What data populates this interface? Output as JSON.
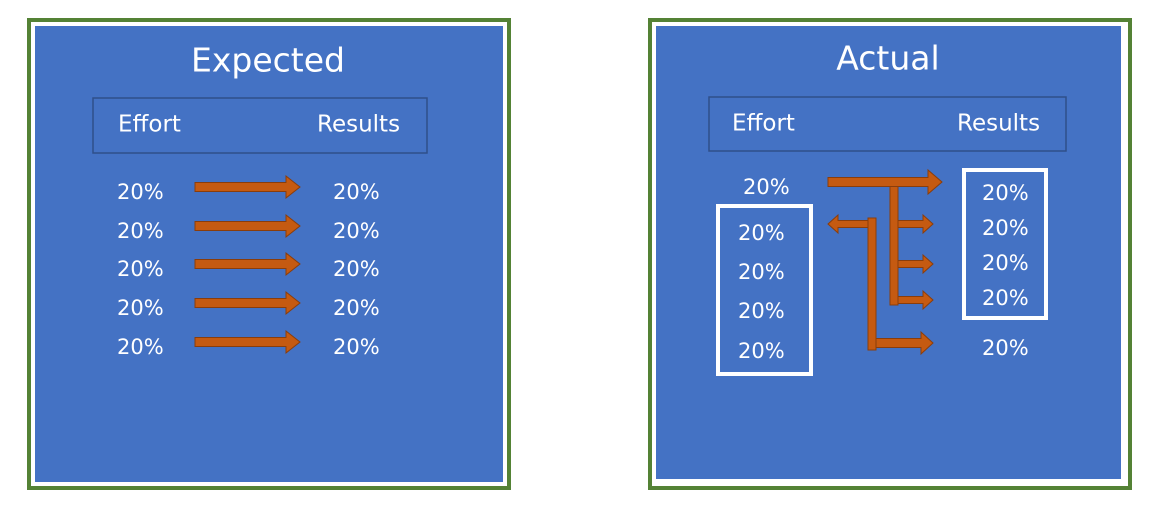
{
  "panels": [
    {
      "title": "Expected",
      "header": {
        "left": "Effort",
        "right": "Results"
      },
      "effort": [
        "20%",
        "20%",
        "20%",
        "20%",
        "20%"
      ],
      "results": [
        "20%",
        "20%",
        "20%",
        "20%",
        "20%"
      ]
    },
    {
      "title": "Actual",
      "header": {
        "left": "Effort",
        "right": "Results"
      },
      "effort": [
        "20%",
        "20%",
        "20%",
        "20%",
        "20%"
      ],
      "results": [
        "20%",
        "20%",
        "20%",
        "20%",
        "20%"
      ]
    }
  ]
}
